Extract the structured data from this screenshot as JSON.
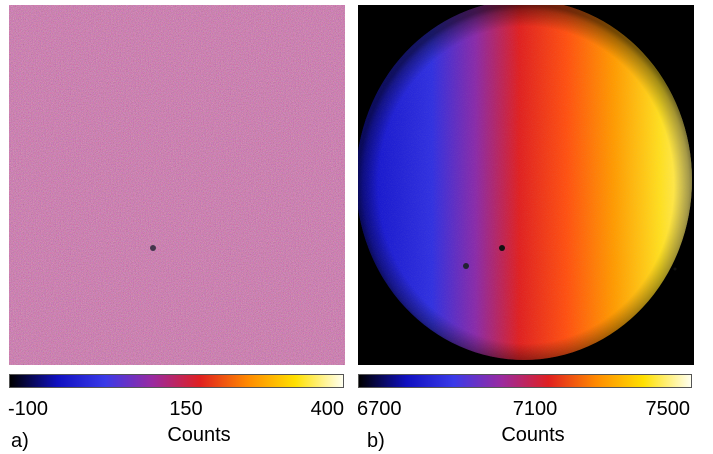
{
  "panels": [
    {
      "label": "a)",
      "colorbar": {
        "min": "-100",
        "mid": "150",
        "max": "400",
        "title": "Counts"
      }
    },
    {
      "label": "b)",
      "colorbar": {
        "min": "6700",
        "mid": "7100",
        "max": "7500",
        "title": "Counts"
      }
    }
  ],
  "colormap": [
    "#000000",
    "#1010c0",
    "#3a3ae8",
    "#9a2aa0",
    "#e02020",
    "#ff8a00",
    "#ffe000",
    "#fffff0"
  ],
  "colors": {
    "background": "#ffffff",
    "mask": "#000000"
  }
}
